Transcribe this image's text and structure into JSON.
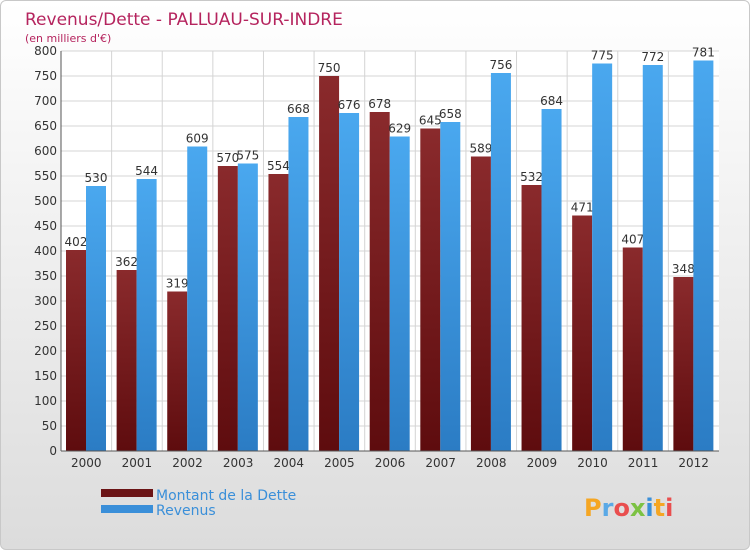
{
  "chart_data": {
    "type": "bar",
    "title": "Revenus/Dette - PALLUAU-SUR-INDRE",
    "subtitle": "(en milliers d'€)",
    "categories": [
      "2000",
      "2001",
      "2002",
      "2003",
      "2004",
      "2005",
      "2006",
      "2007",
      "2008",
      "2009",
      "2010",
      "2011",
      "2012"
    ],
    "series": [
      {
        "name": "Montant de la Dette",
        "values": [
          402,
          362,
          319,
          570,
          554,
          750,
          678,
          645,
          589,
          532,
          471,
          407,
          348
        ]
      },
      {
        "name": "Revenus",
        "values": [
          530,
          544,
          609,
          575,
          668,
          676,
          629,
          658,
          756,
          684,
          775,
          772,
          781
        ]
      }
    ],
    "ylim": [
      0,
      800
    ],
    "yticks": [
      0,
      50,
      100,
      150,
      200,
      250,
      300,
      350,
      400,
      450,
      500,
      550,
      600,
      650,
      700,
      750,
      800
    ],
    "grid": true,
    "legend": "bottom-left",
    "colors": {
      "dette": "#6b1416",
      "revenus": "#3a8fd9",
      "title": "#b5245e"
    }
  },
  "logo": {
    "text": "Proxiti"
  }
}
